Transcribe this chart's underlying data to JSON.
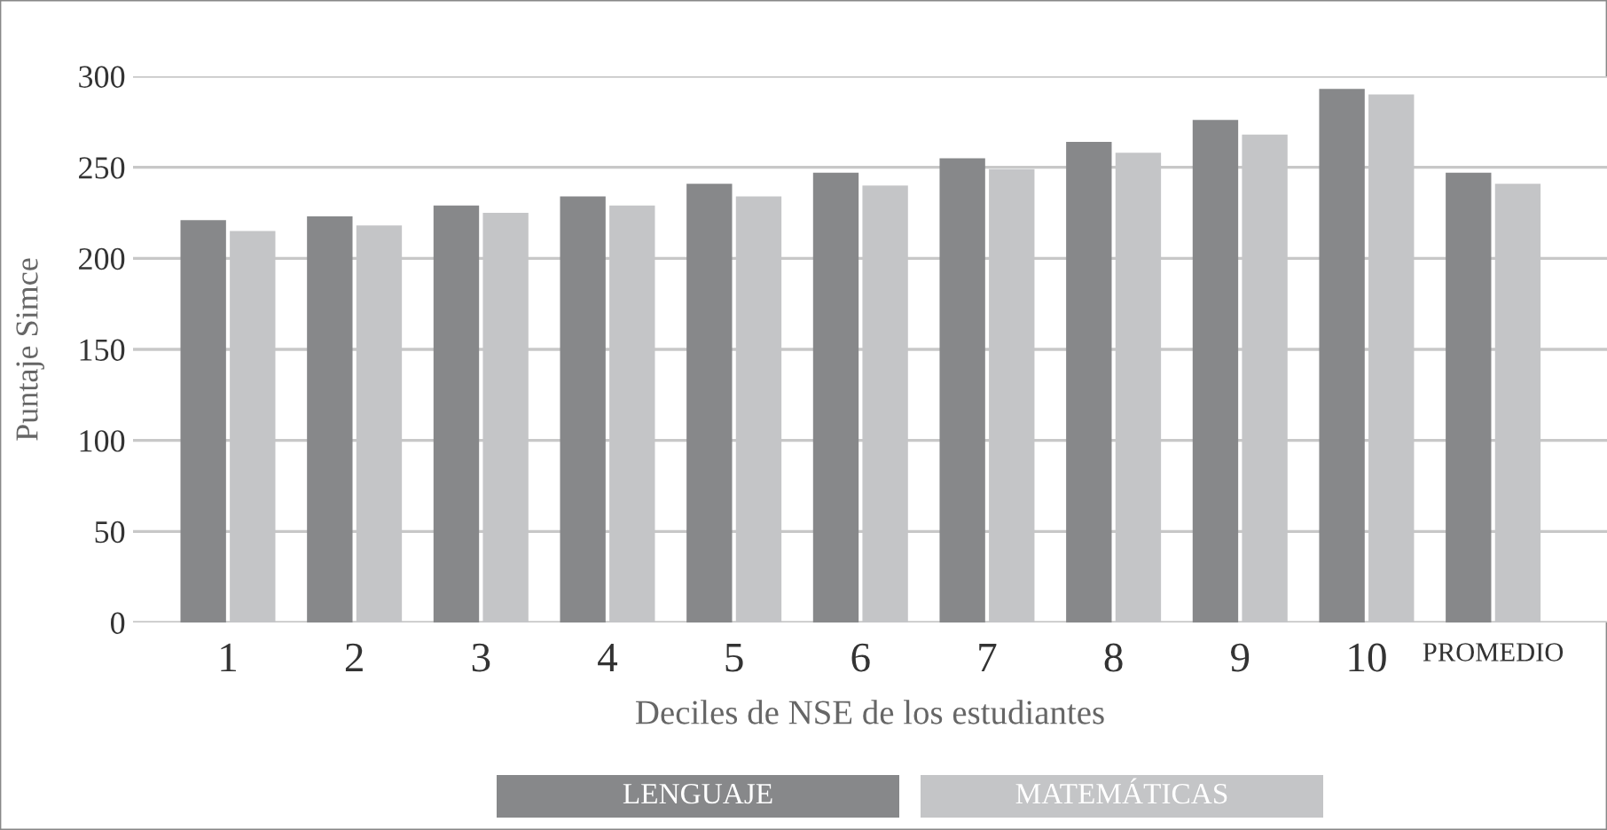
{
  "chart_data": {
    "type": "bar",
    "xlabel": "Deciles de NSE de los estudiantes",
    "ylabel": "Puntaje Simce",
    "categories": [
      "1",
      "2",
      "3",
      "4",
      "5",
      "6",
      "7",
      "8",
      "9",
      "10",
      "PROMEDIO"
    ],
    "series": [
      {
        "name": "LENGUAJE",
        "color": "#87888a",
        "values": [
          221,
          223,
          229,
          234,
          241,
          247,
          255,
          264,
          276,
          293,
          247
        ]
      },
      {
        "name": "MATEMÁTICAS",
        "color": "#c4c5c7",
        "values": [
          215,
          218,
          225,
          229,
          234,
          240,
          249,
          258,
          268,
          290,
          241
        ]
      }
    ],
    "ylim": [
      0,
      300
    ],
    "yticks": [
      0,
      50,
      100,
      150,
      200,
      250,
      300
    ],
    "grid": "y",
    "legend": "bottom"
  }
}
